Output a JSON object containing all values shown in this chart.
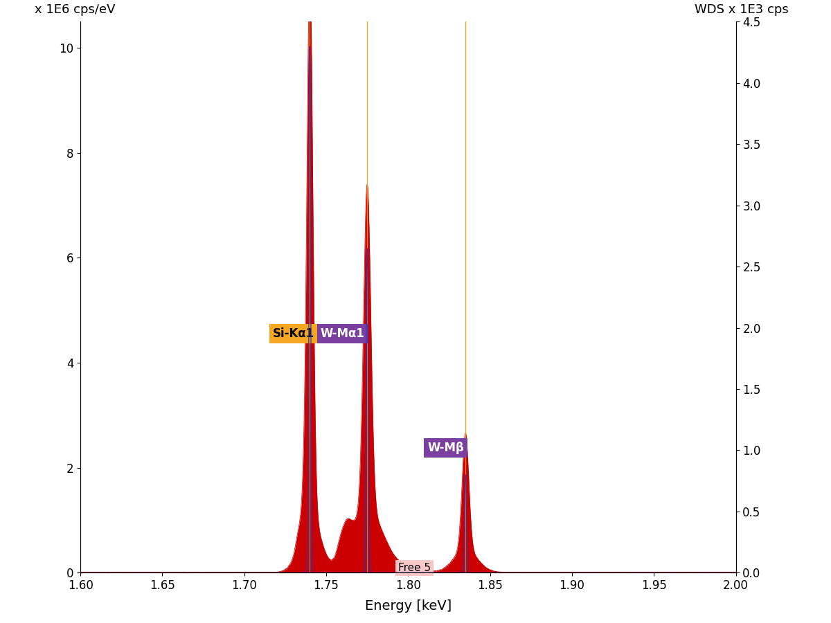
{
  "xlim": [
    1.6,
    2.0
  ],
  "ylim": [
    0,
    10.5
  ],
  "ylim_right": [
    0,
    4.5
  ],
  "xlabel": "Energy [keV]",
  "ylabel_left": "x 1E6 cps/eV",
  "ylabel_right": "WDS x 1E3 cps",
  "xticks": [
    1.6,
    1.65,
    1.7,
    1.75,
    1.8,
    1.85,
    1.9,
    1.95,
    2.0
  ],
  "yticks_left": [
    0,
    2,
    4,
    6,
    8,
    10
  ],
  "yticks_right": [
    0.0,
    0.5,
    1.0,
    1.5,
    2.0,
    2.5,
    3.0,
    3.5,
    4.0,
    4.5
  ],
  "line_color": "#CC0000",
  "fill_color": "#CC0000",
  "background_color": "#ffffff",
  "label_si_ka1": "Si-Kα1",
  "label_w_ma1": "W-Mα1",
  "label_w_mb": "W-Mβ",
  "label_free5": "Free 5",
  "label_si_ka1_color_bg": "#F5A623",
  "label_w_ma1_color_bg": "#7B3FA0",
  "label_w_mb_color_bg": "#7B3FA0",
  "label_free5_color_bg": "#F8C8C8",
  "si_ka1_peak_x": 1.74,
  "w_ma1_peak_x": 1.775,
  "w_mb_peak_x": 1.835,
  "vertical_line_color": "#FF9900",
  "wds_line_color": "#3333AA"
}
